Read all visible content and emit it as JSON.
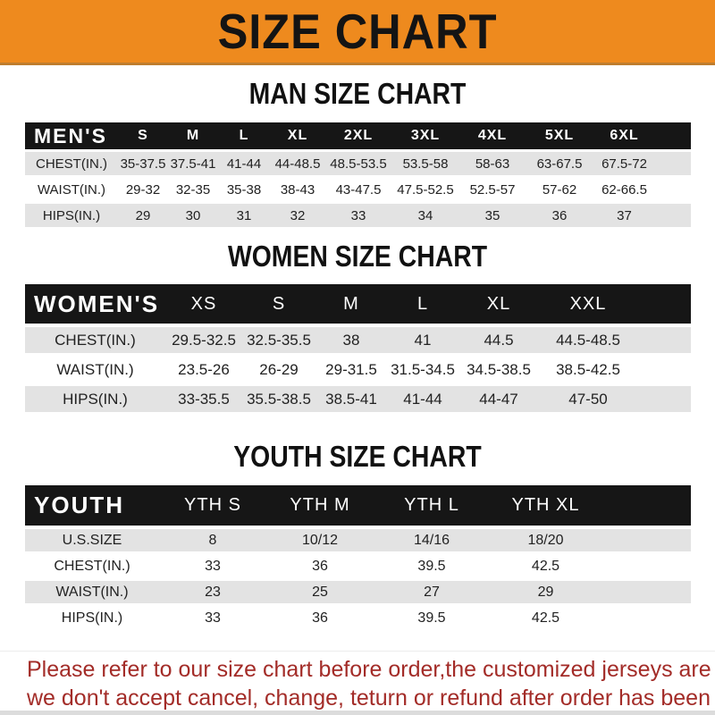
{
  "banner": {
    "title": "SIZE CHART"
  },
  "colors": {
    "banner_bg": "#EE8A1E",
    "table_header_bg": "#161616",
    "row_alt_bg": "#E3E3E3",
    "note_text": "#A32C28"
  },
  "sections": [
    {
      "heading": "MAN SIZE CHART",
      "table": {
        "label": "MEN'S",
        "columns": [
          "S",
          "M",
          "L",
          "XL",
          "2XL",
          "3XL",
          "4XL",
          "5XL",
          "6XL"
        ],
        "rows": [
          {
            "label": "CHEST(IN.)",
            "values": [
              "35-37.5",
              "37.5-41",
              "41-44",
              "44-48.5",
              "48.5-53.5",
              "53.5-58",
              "58-63",
              "63-67.5",
              "67.5-72"
            ]
          },
          {
            "label": "WAIST(IN.)",
            "values": [
              "29-32",
              "32-35",
              "35-38",
              "38-43",
              "43-47.5",
              "47.5-52.5",
              "52.5-57",
              "57-62",
              "62-66.5"
            ]
          },
          {
            "label": "HIPS(IN.)",
            "values": [
              "29",
              "30",
              "31",
              "32",
              "33",
              "34",
              "35",
              "36",
              "37"
            ]
          }
        ]
      }
    },
    {
      "heading": "WOMEN SIZE CHART",
      "table": {
        "label": "WOMEN'S",
        "columns": [
          "XS",
          "S",
          "M",
          "L",
          "XL",
          "XXL"
        ],
        "rows": [
          {
            "label": "CHEST(IN.)",
            "values": [
              "29.5-32.5",
              "32.5-35.5",
              "38",
              "41",
              "44.5",
              "44.5-48.5"
            ]
          },
          {
            "label": "WAIST(IN.)",
            "values": [
              "23.5-26",
              "26-29",
              "29-31.5",
              "31.5-34.5",
              "34.5-38.5",
              "38.5-42.5"
            ]
          },
          {
            "label": "HIPS(IN.)",
            "values": [
              "33-35.5",
              "35.5-38.5",
              "38.5-41",
              "41-44",
              "44-47",
              "47-50"
            ]
          }
        ]
      }
    },
    {
      "heading": "YOUTH SIZE CHART",
      "table": {
        "label": "YOUTH",
        "columns": [
          "YTH S",
          "YTH M",
          "YTH L",
          "YTH XL"
        ],
        "rows": [
          {
            "label": "U.S.SIZE",
            "values": [
              "8",
              "10/12",
              "14/16",
              "18/20"
            ]
          },
          {
            "label": "CHEST(IN.)",
            "values": [
              "33",
              "36",
              "39.5",
              "42.5"
            ]
          },
          {
            "label": "WAIST(IN.)",
            "values": [
              "23",
              "25",
              "27",
              "29"
            ]
          },
          {
            "label": "HIPS(IN.)",
            "values": [
              "33",
              "36",
              "39.5",
              "42.5"
            ]
          }
        ]
      }
    }
  ],
  "footer": {
    "line1": "Please refer to our size chart before order,the customized jerseys are special products,",
    "line2": "we don't accept cancel, change, teturn or refund after order has been placed!"
  }
}
